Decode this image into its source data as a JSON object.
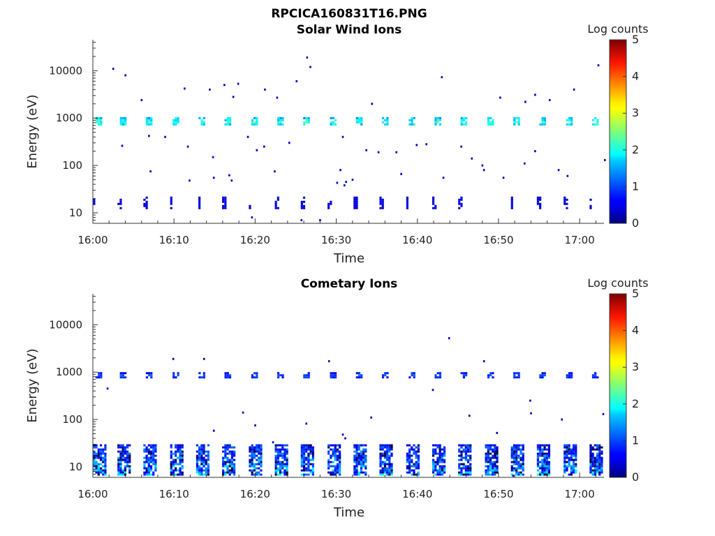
{
  "figure_title": "RPCICA160831T16.PNG",
  "chart_data": [
    {
      "type": "heatmap",
      "title": "Solar Wind Ions",
      "xlabel": "Time",
      "ylabel": "Energy (eV)",
      "x_ticks": [
        "16:00",
        "16:10",
        "16:20",
        "16:30",
        "16:40",
        "16:50",
        "17:00"
      ],
      "x_range": [
        "16:00",
        "17:03"
      ],
      "y_scale": "log",
      "y_ticks": [
        10,
        100,
        1000,
        10000
      ],
      "y_tick_labels": [
        "10",
        "100",
        "1000",
        "10000"
      ],
      "y_range": [
        6,
        45000
      ],
      "colorbar": {
        "label": "Log counts",
        "range": [
          0,
          5
        ],
        "ticks": [
          "0",
          "1",
          "2",
          "3",
          "4",
          "5"
        ],
        "colormap": "jet"
      },
      "grid": false,
      "sweeps": {
        "times_min": [
          0,
          3,
          6.2,
          9.5,
          12.7,
          15.9,
          19.2,
          22.4,
          25.6,
          28.9,
          32.1,
          35.3,
          38.6,
          41.8,
          45.0,
          48.3,
          51.5,
          54.7,
          58.0,
          61.2
        ],
        "peak": {
          "energy_range_eV": [
            720,
            1050
          ],
          "typical_log_counts": [
            1.2,
            2.6
          ]
        },
        "low_energy": {
          "energy_range_eV": [
            13,
            22
          ],
          "typical_log_counts": [
            0.3,
            0.6
          ]
        }
      },
      "scatter_points": [
        {
          "t": 2.4,
          "e": 11000,
          "c": 0.3
        },
        {
          "t": 3.9,
          "e": 8000,
          "c": 0.3
        },
        {
          "t": 5.9,
          "e": 2400,
          "c": 0.3
        },
        {
          "t": 11.2,
          "e": 4200,
          "c": 0.3
        },
        {
          "t": 14.3,
          "e": 4000,
          "c": 0.3
        },
        {
          "t": 16.1,
          "e": 5000,
          "c": 0.3
        },
        {
          "t": 17.2,
          "e": 2800,
          "c": 0.3
        },
        {
          "t": 17.8,
          "e": 5300,
          "c": 0.3
        },
        {
          "t": 21.1,
          "e": 4000,
          "c": 0.3
        },
        {
          "t": 22.6,
          "e": 2700,
          "c": 0.3
        },
        {
          "t": 25.0,
          "e": 6000,
          "c": 0.3
        },
        {
          "t": 26.3,
          "e": 19000,
          "c": 0.3
        },
        {
          "t": 26.7,
          "e": 12000,
          "c": 0.3
        },
        {
          "t": 34.3,
          "e": 2000,
          "c": 0.3
        },
        {
          "t": 42.9,
          "e": 7300,
          "c": 0.3
        },
        {
          "t": 50.1,
          "e": 2700,
          "c": 0.3
        },
        {
          "t": 53.2,
          "e": 2200,
          "c": 0.3
        },
        {
          "t": 54.4,
          "e": 3100,
          "c": 0.3
        },
        {
          "t": 56.2,
          "e": 2400,
          "c": 0.3
        },
        {
          "t": 59.2,
          "e": 4000,
          "c": 0.3
        },
        {
          "t": 62.2,
          "e": 13000,
          "c": 0.3
        },
        {
          "t": 3.5,
          "e": 260,
          "c": 0.3
        },
        {
          "t": 6.8,
          "e": 420,
          "c": 0.3
        },
        {
          "t": 8.8,
          "e": 400,
          "c": 0.3
        },
        {
          "t": 11.6,
          "e": 250,
          "c": 0.3
        },
        {
          "t": 14.7,
          "e": 150,
          "c": 0.3
        },
        {
          "t": 19.0,
          "e": 400,
          "c": 0.3
        },
        {
          "t": 20.1,
          "e": 210,
          "c": 0.3
        },
        {
          "t": 21.0,
          "e": 250,
          "c": 0.3
        },
        {
          "t": 24.1,
          "e": 300,
          "c": 0.3
        },
        {
          "t": 30.7,
          "e": 400,
          "c": 0.3
        },
        {
          "t": 33.6,
          "e": 210,
          "c": 0.3
        },
        {
          "t": 35.1,
          "e": 190,
          "c": 0.3
        },
        {
          "t": 37.3,
          "e": 190,
          "c": 0.3
        },
        {
          "t": 39.8,
          "e": 270,
          "c": 0.3
        },
        {
          "t": 41.0,
          "e": 280,
          "c": 0.3
        },
        {
          "t": 45.3,
          "e": 250,
          "c": 0.3
        },
        {
          "t": 46.6,
          "e": 140,
          "c": 0.3
        },
        {
          "t": 53.1,
          "e": 110,
          "c": 0.3
        },
        {
          "t": 54.4,
          "e": 200,
          "c": 0.3
        },
        {
          "t": 63.0,
          "e": 130,
          "c": 0.3
        },
        {
          "t": 7.0,
          "e": 75,
          "c": 0.3
        },
        {
          "t": 11.8,
          "e": 48,
          "c": 0.3
        },
        {
          "t": 14.8,
          "e": 55,
          "c": 0.3
        },
        {
          "t": 16.7,
          "e": 62,
          "c": 0.3
        },
        {
          "t": 17.0,
          "e": 48,
          "c": 0.3
        },
        {
          "t": 22.3,
          "e": 75,
          "c": 0.3
        },
        {
          "t": 30.4,
          "e": 80,
          "c": 0.3
        },
        {
          "t": 30.0,
          "e": 43,
          "c": 0.3
        },
        {
          "t": 31.1,
          "e": 45,
          "c": 0.3
        },
        {
          "t": 30.9,
          "e": 38,
          "c": 0.3
        },
        {
          "t": 31.9,
          "e": 50,
          "c": 0.3
        },
        {
          "t": 37.9,
          "e": 66,
          "c": 0.3
        },
        {
          "t": 43.1,
          "e": 55,
          "c": 0.3
        },
        {
          "t": 47.9,
          "e": 100,
          "c": 0.3
        },
        {
          "t": 48.1,
          "e": 80,
          "c": 0.3
        },
        {
          "t": 50.5,
          "e": 55,
          "c": 0.3
        },
        {
          "t": 57.3,
          "e": 80,
          "c": 0.3
        },
        {
          "t": 58.4,
          "e": 60,
          "c": 0.3
        }
      ],
      "low_tail_points": [
        {
          "t": 19.5,
          "e": 8,
          "c": 0.4
        },
        {
          "t": 25.6,
          "e": 7,
          "c": 0.4
        },
        {
          "t": 27.9,
          "e": 7,
          "c": 0.4
        }
      ]
    },
    {
      "type": "heatmap",
      "title": "Cometary Ions",
      "xlabel": "Time",
      "ylabel": "Energy (eV)",
      "x_ticks": [
        "16:00",
        "16:10",
        "16:20",
        "16:30",
        "16:40",
        "16:50",
        "17:00"
      ],
      "x_range": [
        "16:00",
        "17:03"
      ],
      "y_scale": "log",
      "y_ticks": [
        10,
        100,
        1000,
        10000
      ],
      "y_tick_labels": [
        "10",
        "100",
        "1000",
        "10000"
      ],
      "y_range": [
        6,
        45000
      ],
      "colorbar": {
        "label": "Log counts",
        "range": [
          0,
          5
        ],
        "ticks": [
          "0",
          "1",
          "2",
          "3",
          "4",
          "5"
        ],
        "colormap": "jet"
      },
      "grid": false,
      "sweeps": {
        "times_min": [
          0,
          3,
          6.2,
          9.5,
          12.7,
          15.9,
          19.2,
          22.4,
          25.6,
          28.9,
          32.1,
          35.3,
          38.6,
          41.8,
          45.0,
          48.3,
          51.5,
          54.7,
          58.0,
          61.2
        ],
        "peak": {
          "energy_range_eV": [
            800,
            1000
          ],
          "typical_log_counts": [
            0.5,
            1.3
          ]
        },
        "low_energy": {
          "energy_range_eV": [
            7,
            30
          ],
          "typical_log_counts": [
            0.3,
            2.0
          ]
        }
      },
      "scatter_points": [
        {
          "t": 1.7,
          "e": 450,
          "c": 0.5
        },
        {
          "t": 9.8,
          "e": 1900,
          "c": 0.3
        },
        {
          "t": 13.6,
          "e": 1900,
          "c": 0.3
        },
        {
          "t": 29.0,
          "e": 1700,
          "c": 0.3
        },
        {
          "t": 48.1,
          "e": 1700,
          "c": 0.3
        },
        {
          "t": 43.8,
          "e": 5200,
          "c": 0.3
        },
        {
          "t": 41.8,
          "e": 420,
          "c": 0.3
        },
        {
          "t": 53.8,
          "e": 250,
          "c": 0.3
        },
        {
          "t": 53.9,
          "e": 135,
          "c": 0.3
        },
        {
          "t": 18.4,
          "e": 140,
          "c": 0.3
        },
        {
          "t": 19.9,
          "e": 75,
          "c": 0.3
        },
        {
          "t": 26.2,
          "e": 82,
          "c": 0.3
        },
        {
          "t": 34.2,
          "e": 110,
          "c": 0.3
        },
        {
          "t": 46.3,
          "e": 120,
          "c": 0.3
        },
        {
          "t": 57.7,
          "e": 100,
          "c": 0.3
        },
        {
          "t": 62.8,
          "e": 130,
          "c": 0.3
        },
        {
          "t": 14.8,
          "e": 58,
          "c": 0.3
        },
        {
          "t": 30.7,
          "e": 48,
          "c": 0.3
        },
        {
          "t": 31.0,
          "e": 40,
          "c": 0.3
        },
        {
          "t": 49.7,
          "e": 52,
          "c": 0.3
        },
        {
          "t": 22.1,
          "e": 33,
          "c": 0.3
        }
      ],
      "low_tail_points": [
        {
          "t": 51.7,
          "e": 6.5,
          "c": 0.4
        }
      ]
    }
  ]
}
